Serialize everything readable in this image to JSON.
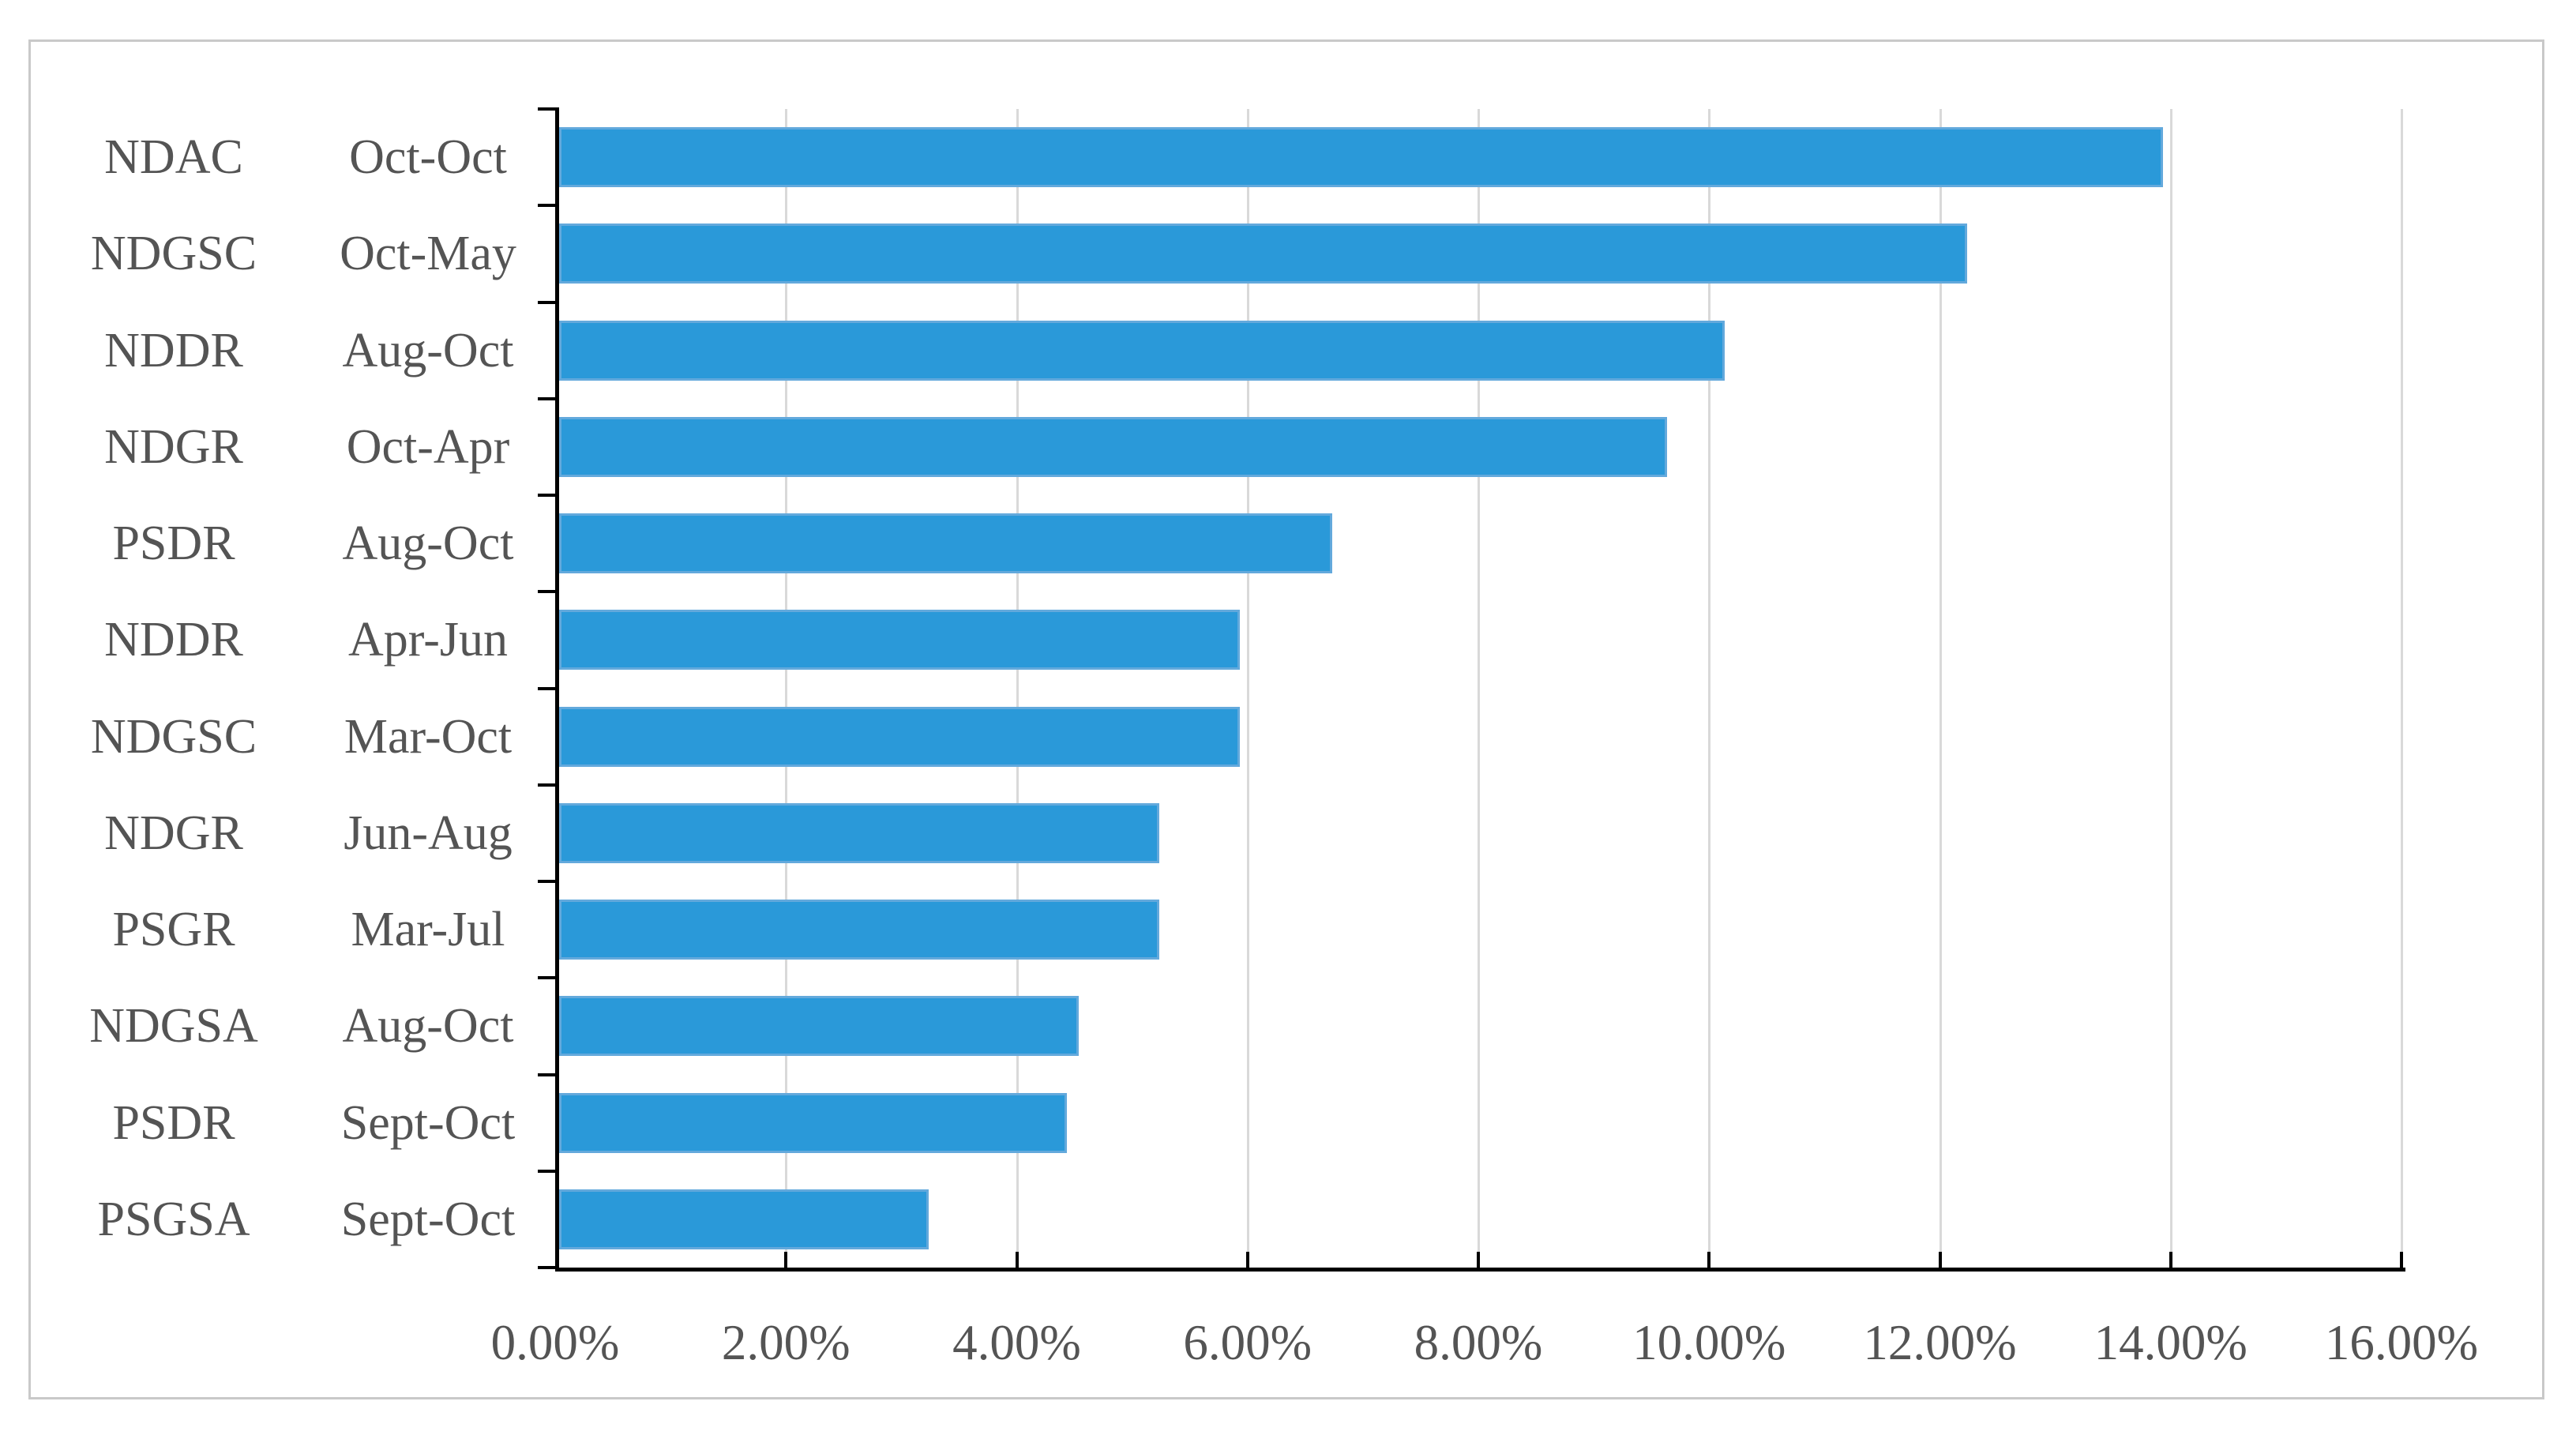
{
  "chart_data": {
    "type": "bar",
    "orientation": "horizontal",
    "title": "",
    "xlabel": "",
    "ylabel": "",
    "grid": true,
    "legend_position": "none",
    "xlim": [
      0,
      16
    ],
    "x_tick_step": 2,
    "x_tick_labels": [
      "0.00%",
      "2.00%",
      "4.00%",
      "6.00%",
      "8.00%",
      "10.00%",
      "12.00%",
      "14.00%",
      "16.00%"
    ],
    "categories": [
      {
        "code": "NDAC",
        "period": "Oct-Oct"
      },
      {
        "code": "NDGSC",
        "period": "Oct-May"
      },
      {
        "code": "NDDR",
        "period": "Aug-Oct"
      },
      {
        "code": "NDGR",
        "period": "Oct-Apr"
      },
      {
        "code": "PSDR",
        "period": "Aug-Oct"
      },
      {
        "code": "NDDR",
        "period": "Apr-Jun"
      },
      {
        "code": "NDGSC",
        "period": "Mar-Oct"
      },
      {
        "code": "NDGR",
        "period": "Jun-Aug"
      },
      {
        "code": "PSGR",
        "period": "Mar-Jul"
      },
      {
        "code": "NDGSA",
        "period": "Aug-Oct"
      },
      {
        "code": "PSDR",
        "period": "Sept-Oct"
      },
      {
        "code": "PSGSA",
        "period": "Sept-Oct"
      }
    ],
    "values": [
      13.9,
      12.2,
      10.1,
      9.6,
      6.7,
      5.9,
      5.9,
      5.2,
      5.2,
      4.5,
      4.4,
      3.2
    ],
    "values_unit": "percent",
    "colors": {
      "bar_fill": "#2A99D9",
      "bar_border": "#63A9DC",
      "gridline": "#D9D9D9",
      "axis": "#000000",
      "label_text": "#545454",
      "frame_border": "#C9C9C9",
      "background": "#FFFFFF"
    }
  }
}
